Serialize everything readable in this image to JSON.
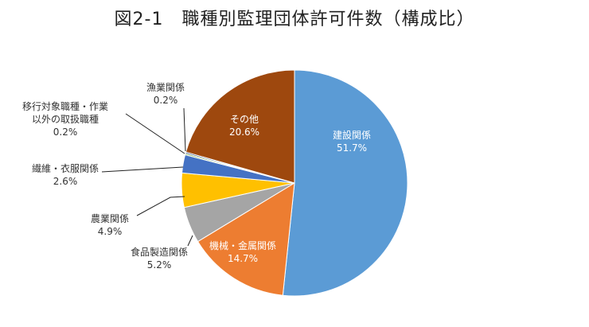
{
  "chart_data": {
    "type": "pie",
    "title": "図2-1　職種別監理団体許可件数（構成比）",
    "start_angle_deg": 0,
    "direction": "clockwise",
    "slices": [
      {
        "name": "建設関係",
        "value": 51.7,
        "label": "51.7%",
        "color": "#5b9bd5"
      },
      {
        "name": "機械・金属関係",
        "value": 14.7,
        "label": "14.7%",
        "color": "#ed7d31"
      },
      {
        "name": "食品製造関係",
        "value": 5.2,
        "label": "5.2%",
        "color": "#a5a5a5"
      },
      {
        "name": "農業関係",
        "value": 4.9,
        "label": "4.9%",
        "color": "#ffc000"
      },
      {
        "name": "繊維・衣服関係",
        "value": 2.6,
        "label": "2.6%",
        "color": "#4472c4"
      },
      {
        "name_lines": [
          "移行対象職種・作業",
          "以外の取扱職種"
        ],
        "value": 0.2,
        "label": "0.2%",
        "color": "#70ad47"
      },
      {
        "name": "漁業関係",
        "value": 0.2,
        "label": "0.2%",
        "color": "#264478"
      },
      {
        "name": "その他",
        "value": 20.6,
        "label": "20.6%",
        "color": "#9e480e"
      }
    ]
  }
}
